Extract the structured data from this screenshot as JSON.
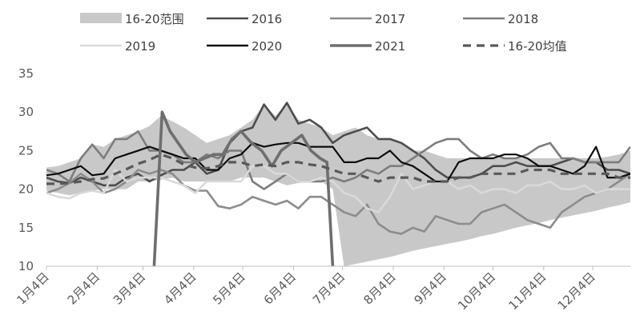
{
  "chart_data": {
    "type": "line",
    "title": "",
    "xlabel": "",
    "ylabel": "",
    "ylim": [
      10,
      35
    ],
    "yticks": [
      10,
      15,
      20,
      25,
      30,
      35
    ],
    "grid": false,
    "legend_position": "top",
    "week_count": 52,
    "x_ticks": [
      {
        "label": "1月4日",
        "week": 0
      },
      {
        "label": "2月4日",
        "week": 4.43
      },
      {
        "label": "3月4日",
        "week": 8.43
      },
      {
        "label": "4月4日",
        "week": 12.86
      },
      {
        "label": "5月4日",
        "week": 17.14
      },
      {
        "label": "6月4日",
        "week": 21.57
      },
      {
        "label": "7月4日",
        "week": 25.86
      },
      {
        "label": "8月4日",
        "week": 30.29
      },
      {
        "label": "9月4日",
        "week": 34.71
      },
      {
        "label": "10月4日",
        "week": 39
      },
      {
        "label": "11月4日",
        "week": 43.43
      },
      {
        "label": "12月4日",
        "week": 47.71
      }
    ],
    "range_band": {
      "name": "16-20范围",
      "color": "#c8c8c8",
      "low": [
        19.8,
        19.5,
        19.2,
        19.5,
        19.8,
        20.0,
        20.0,
        20.0,
        21.0,
        21.0,
        21.2,
        21.5,
        21.0,
        21.0,
        21.0,
        21.0,
        21.0,
        21.5,
        21.5,
        21.5,
        21.0,
        20.5,
        20.8,
        21.0,
        21.0,
        20.0,
        10.0,
        10.3,
        10.6,
        10.9,
        11.2,
        11.6,
        12.0,
        12.3,
        12.6,
        12.9,
        13.2,
        13.5,
        13.9,
        14.2,
        14.6,
        15.0,
        15.3,
        15.6,
        16.0,
        16.3,
        16.6,
        16.9,
        17.2,
        17.6,
        17.9,
        18.3
      ],
      "high": [
        22.8,
        23.0,
        23.5,
        24.0,
        25.8,
        25.5,
        26.5,
        27.0,
        27.5,
        28.2,
        29.5,
        28.8,
        28.0,
        27.0,
        26.0,
        26.5,
        27.0,
        28.0,
        29.0,
        31.0,
        29.5,
        31.2,
        29.0,
        28.5,
        28.0,
        27.0,
        27.5,
        28.0,
        27.0,
        26.5,
        26.5,
        26.0,
        25.0,
        25.0,
        24.5,
        24.0,
        24.0,
        24.0,
        24.0,
        24.0,
        24.0,
        24.0,
        24.0,
        24.0,
        24.0,
        24.0,
        24.0,
        24.0,
        24.0,
        24.2,
        24.5,
        25.0
      ]
    },
    "series": [
      {
        "name": "2016",
        "color": "#4d4d4d",
        "width": 2.6,
        "dash": "",
        "values": [
          21.5,
          21.0,
          20.8,
          21.5,
          21.0,
          20.5,
          20.5,
          21.5,
          22.0,
          21.0,
          21.8,
          22.5,
          22.5,
          23.5,
          22.0,
          22.5,
          26.0,
          27.5,
          28.0,
          31.0,
          29.0,
          31.2,
          28.5,
          29.0,
          28.0,
          26.0,
          27.0,
          27.5,
          28.0,
          26.5,
          26.5,
          26.0,
          25.0,
          24.0,
          22.5,
          21.5,
          21.5,
          21.5,
          22.0,
          23.0,
          23.0,
          23.5,
          23.0,
          23.0,
          23.0,
          23.5,
          24.0,
          23.5,
          23.5,
          22.5,
          22.5,
          22.0
        ]
      },
      {
        "name": "2017",
        "color": "#8c8c8c",
        "width": 2.6,
        "dash": "",
        "values": [
          19.5,
          20.0,
          20.8,
          22.0,
          21.0,
          19.5,
          20.0,
          21.0,
          22.5,
          22.0,
          22.5,
          22.0,
          20.5,
          19.8,
          19.8,
          17.8,
          17.5,
          18.0,
          19.0,
          18.5,
          18.0,
          18.5,
          17.5,
          19.0,
          19.0,
          18.0,
          17.0,
          16.5,
          18.0,
          15.5,
          14.5,
          14.2,
          15.0,
          14.5,
          16.5,
          16.0,
          15.5,
          15.5,
          17.0,
          17.5,
          18.0,
          17.0,
          16.0,
          15.5,
          15.0,
          17.0,
          18.0,
          19.0,
          19.5,
          20.0,
          21.0,
          22.0
        ]
      },
      {
        "name": "2018",
        "color": "#7d7d7d",
        "width": 2.6,
        "dash": "",
        "values": [
          22.5,
          22.0,
          21.0,
          24.0,
          25.8,
          24.0,
          26.5,
          26.5,
          27.5,
          25.0,
          25.0,
          24.5,
          23.5,
          23.5,
          24.5,
          24.0,
          25.0,
          25.0,
          21.0,
          20.0,
          21.0,
          22.0,
          21.0,
          21.0,
          21.0,
          21.5,
          21.0,
          21.5,
          22.5,
          22.0,
          23.0,
          23.0,
          24.0,
          25.0,
          26.0,
          26.5,
          26.5,
          25.0,
          24.0,
          24.5,
          24.0,
          24.0,
          24.5,
          25.5,
          26.0,
          24.0,
          24.0,
          23.5,
          23.5,
          23.5,
          23.5,
          25.5
        ]
      },
      {
        "name": "2019",
        "color": "#d9d9d9",
        "width": 2.6,
        "dash": "",
        "values": [
          19.5,
          19.0,
          18.8,
          19.5,
          19.8,
          19.5,
          22.5,
          21.0,
          21.5,
          21.5,
          21.5,
          21.0,
          20.5,
          19.5,
          21.0,
          21.0,
          21.0,
          21.0,
          23.0,
          23.0,
          22.0,
          22.0,
          21.0,
          21.0,
          21.5,
          21.0,
          19.5,
          19.0,
          17.5,
          17.0,
          19.0,
          22.0,
          20.0,
          20.5,
          21.0,
          21.0,
          20.0,
          20.5,
          19.5,
          20.0,
          20.0,
          19.5,
          20.5,
          20.5,
          21.0,
          20.0,
          20.0,
          20.5,
          19.5,
          20.0,
          20.0,
          20.0
        ]
      },
      {
        "name": "2020",
        "color": "#0d0d0d",
        "width": 2.2,
        "dash": "",
        "values": [
          21.8,
          22.0,
          22.5,
          23.0,
          21.8,
          22.0,
          24.0,
          24.5,
          25.0,
          25.5,
          25.0,
          24.5,
          24.0,
          24.0,
          22.5,
          22.5,
          24.0,
          24.5,
          26.0,
          25.5,
          25.8,
          26.0,
          26.0,
          25.5,
          25.5,
          25.5,
          23.5,
          23.5,
          24.0,
          24.0,
          25.0,
          23.5,
          23.0,
          22.0,
          21.0,
          21.0,
          23.5,
          24.0,
          24.0,
          24.0,
          24.5,
          24.5,
          24.0,
          23.0,
          23.0,
          22.5,
          22.0,
          23.0,
          25.5,
          21.5,
          21.5,
          22.0
        ]
      },
      {
        "name": "2021",
        "color": "#6e6e6e",
        "width": 3.6,
        "dash": "",
        "points": [
          [
            9.4,
            10.0
          ],
          [
            10.1,
            30.0
          ],
          [
            10.8,
            27.5
          ],
          [
            11.5,
            26.0
          ],
          [
            12.2,
            24.5
          ],
          [
            13.0,
            23.5
          ],
          [
            13.8,
            24.0
          ],
          [
            14.6,
            24.5
          ],
          [
            15.4,
            24.5
          ],
          [
            16.2,
            26.5
          ],
          [
            17.0,
            27.5
          ],
          [
            17.9,
            26.0
          ],
          [
            18.8,
            25.0
          ],
          [
            19.7,
            23.0
          ],
          [
            20.5,
            25.0
          ],
          [
            21.4,
            26.0
          ],
          [
            22.3,
            27.0
          ],
          [
            23.1,
            25.0
          ],
          [
            23.9,
            24.0
          ],
          [
            24.5,
            23.5
          ],
          [
            25.0,
            10.0
          ]
        ]
      },
      {
        "name": "16-20均值",
        "color": "#595959",
        "width": 3.2,
        "dash": "10,7",
        "values": [
          20.7,
          20.7,
          20.8,
          21.0,
          21.3,
          21.4,
          22.0,
          22.6,
          23.3,
          23.8,
          24.5,
          24.0,
          23.2,
          22.8,
          22.7,
          23.0,
          23.5,
          23.5,
          23.0,
          23.2,
          23.0,
          23.5,
          23.5,
          23.2,
          23.0,
          22.5,
          22.0,
          22.0,
          21.5,
          21.0,
          21.5,
          21.5,
          21.5,
          21.0,
          21.0,
          21.0,
          21.5,
          21.5,
          22.0,
          22.0,
          22.0,
          22.0,
          22.5,
          22.5,
          22.5,
          22.0,
          22.0,
          22.0,
          22.0,
          22.0,
          21.5,
          21.5
        ]
      }
    ]
  }
}
